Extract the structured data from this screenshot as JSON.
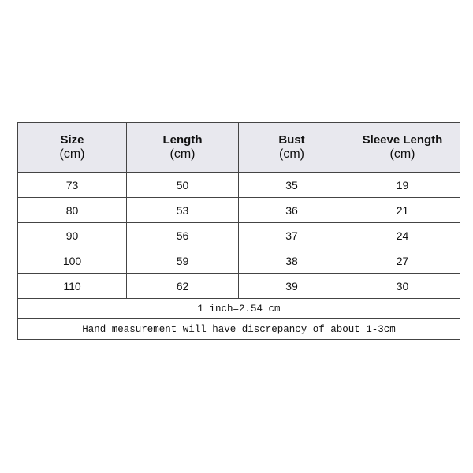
{
  "table": {
    "headers": [
      {
        "name": "Size",
        "unit": "(cm)"
      },
      {
        "name": "Length",
        "unit": "(cm)"
      },
      {
        "name": "Bust",
        "unit": "(cm)"
      },
      {
        "name": "Sleeve Length",
        "unit": "(cm)"
      }
    ],
    "rows": [
      [
        73,
        50,
        35,
        19
      ],
      [
        80,
        53,
        36,
        21
      ],
      [
        90,
        56,
        37,
        24
      ],
      [
        100,
        59,
        38,
        27
      ],
      [
        110,
        62,
        39,
        30
      ]
    ],
    "notes": [
      "1 inch=2.54 cm",
      "Hand measurement will have discrepancy of about 1-3cm"
    ]
  }
}
